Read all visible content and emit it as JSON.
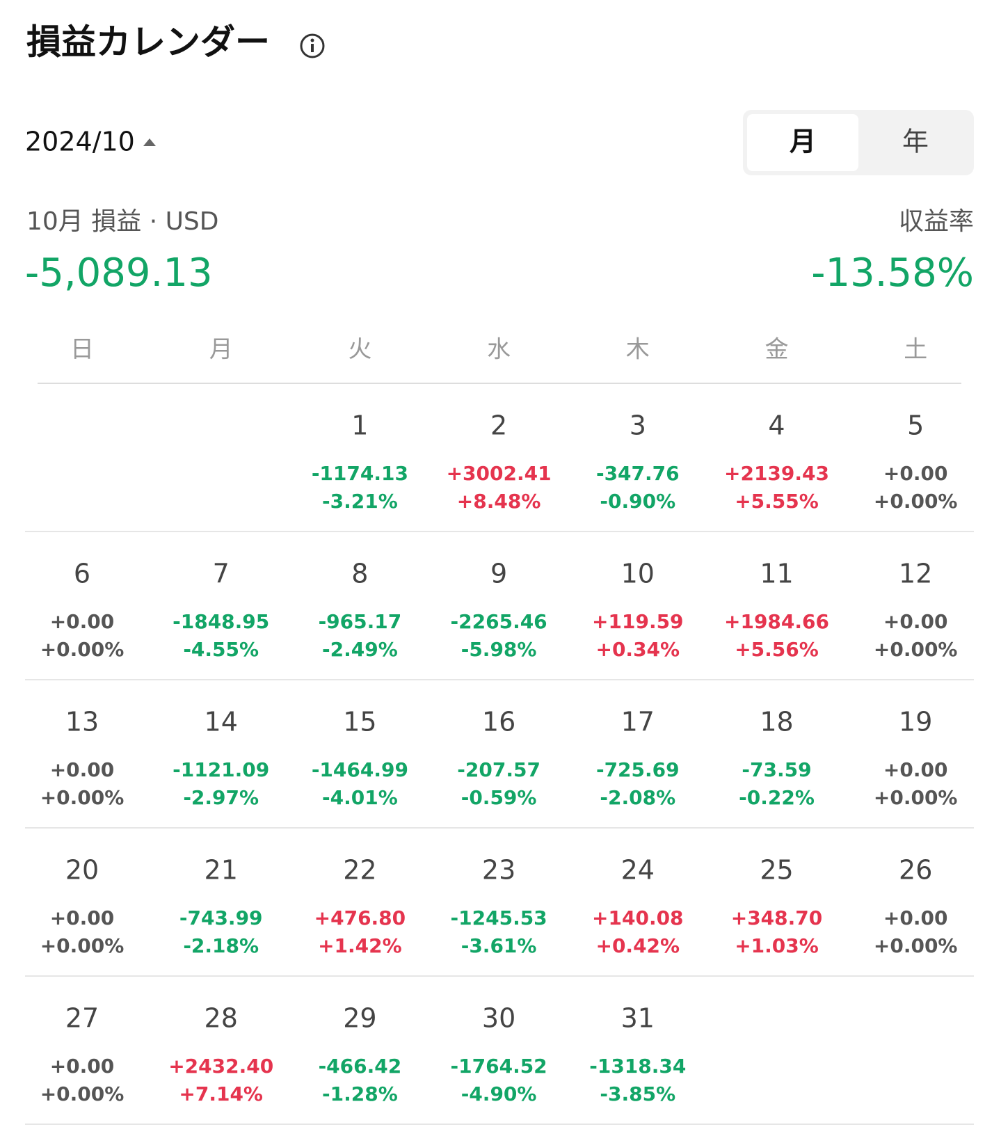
{
  "header": {
    "title": "損益カレンダー"
  },
  "period": {
    "date": "2024/10",
    "toggle": [
      "月",
      "年"
    ]
  },
  "summary": {
    "label": "10月 損益 · USD",
    "value": "-5,089.13",
    "rate_label": "収益率",
    "rate": "-13.58%"
  },
  "weekdays": [
    "日",
    "月",
    "火",
    "水",
    "木",
    "金",
    "土"
  ],
  "weeks": [
    [
      null,
      null,
      {
        "day": 1,
        "pnl": "-1174.13",
        "rate": "-3.21%"
      },
      {
        "day": 2,
        "pnl": "+3002.41",
        "rate": "+8.48%"
      },
      {
        "day": 3,
        "pnl": "-347.76",
        "rate": "-0.90%"
      },
      {
        "day": 4,
        "pnl": "+2139.43",
        "rate": "+5.55%"
      },
      {
        "day": 5,
        "pnl": "+0.00",
        "rate": "+0.00%"
      }
    ],
    [
      {
        "day": 6,
        "pnl": "+0.00",
        "rate": "+0.00%"
      },
      {
        "day": 7,
        "pnl": "-1848.95",
        "rate": "-4.55%"
      },
      {
        "day": 8,
        "pnl": "-965.17",
        "rate": "-2.49%"
      },
      {
        "day": 9,
        "pnl": "-2265.46",
        "rate": "-5.98%"
      },
      {
        "day": 10,
        "pnl": "+119.59",
        "rate": "+0.34%"
      },
      {
        "day": 11,
        "pnl": "+1984.66",
        "rate": "+5.56%"
      },
      {
        "day": 12,
        "pnl": "+0.00",
        "rate": "+0.00%"
      }
    ],
    [
      {
        "day": 13,
        "pnl": "+0.00",
        "rate": "+0.00%"
      },
      {
        "day": 14,
        "pnl": "-1121.09",
        "rate": "-2.97%"
      },
      {
        "day": 15,
        "pnl": "-1464.99",
        "rate": "-4.01%"
      },
      {
        "day": 16,
        "pnl": "-207.57",
        "rate": "-0.59%"
      },
      {
        "day": 17,
        "pnl": "-725.69",
        "rate": "-2.08%"
      },
      {
        "day": 18,
        "pnl": "-73.59",
        "rate": "-0.22%"
      },
      {
        "day": 19,
        "pnl": "+0.00",
        "rate": "+0.00%"
      }
    ],
    [
      {
        "day": 20,
        "pnl": "+0.00",
        "rate": "+0.00%"
      },
      {
        "day": 21,
        "pnl": "-743.99",
        "rate": "-2.18%"
      },
      {
        "day": 22,
        "pnl": "+476.80",
        "rate": "+1.42%"
      },
      {
        "day": 23,
        "pnl": "-1245.53",
        "rate": "-3.61%"
      },
      {
        "day": 24,
        "pnl": "+140.08",
        "rate": "+0.42%"
      },
      {
        "day": 25,
        "pnl": "+348.70",
        "rate": "+1.03%"
      },
      {
        "day": 26,
        "pnl": "+0.00",
        "rate": "+0.00%"
      }
    ],
    [
      {
        "day": 27,
        "pnl": "+0.00",
        "rate": "+0.00%"
      },
      {
        "day": 28,
        "pnl": "+2432.40",
        "rate": "+7.14%"
      },
      {
        "day": 29,
        "pnl": "-466.42",
        "rate": "-1.28%"
      },
      {
        "day": 30,
        "pnl": "-1764.52",
        "rate": "-4.90%"
      },
      {
        "day": 31,
        "pnl": "-1318.34",
        "rate": "-3.85%"
      },
      null,
      null
    ]
  ]
}
